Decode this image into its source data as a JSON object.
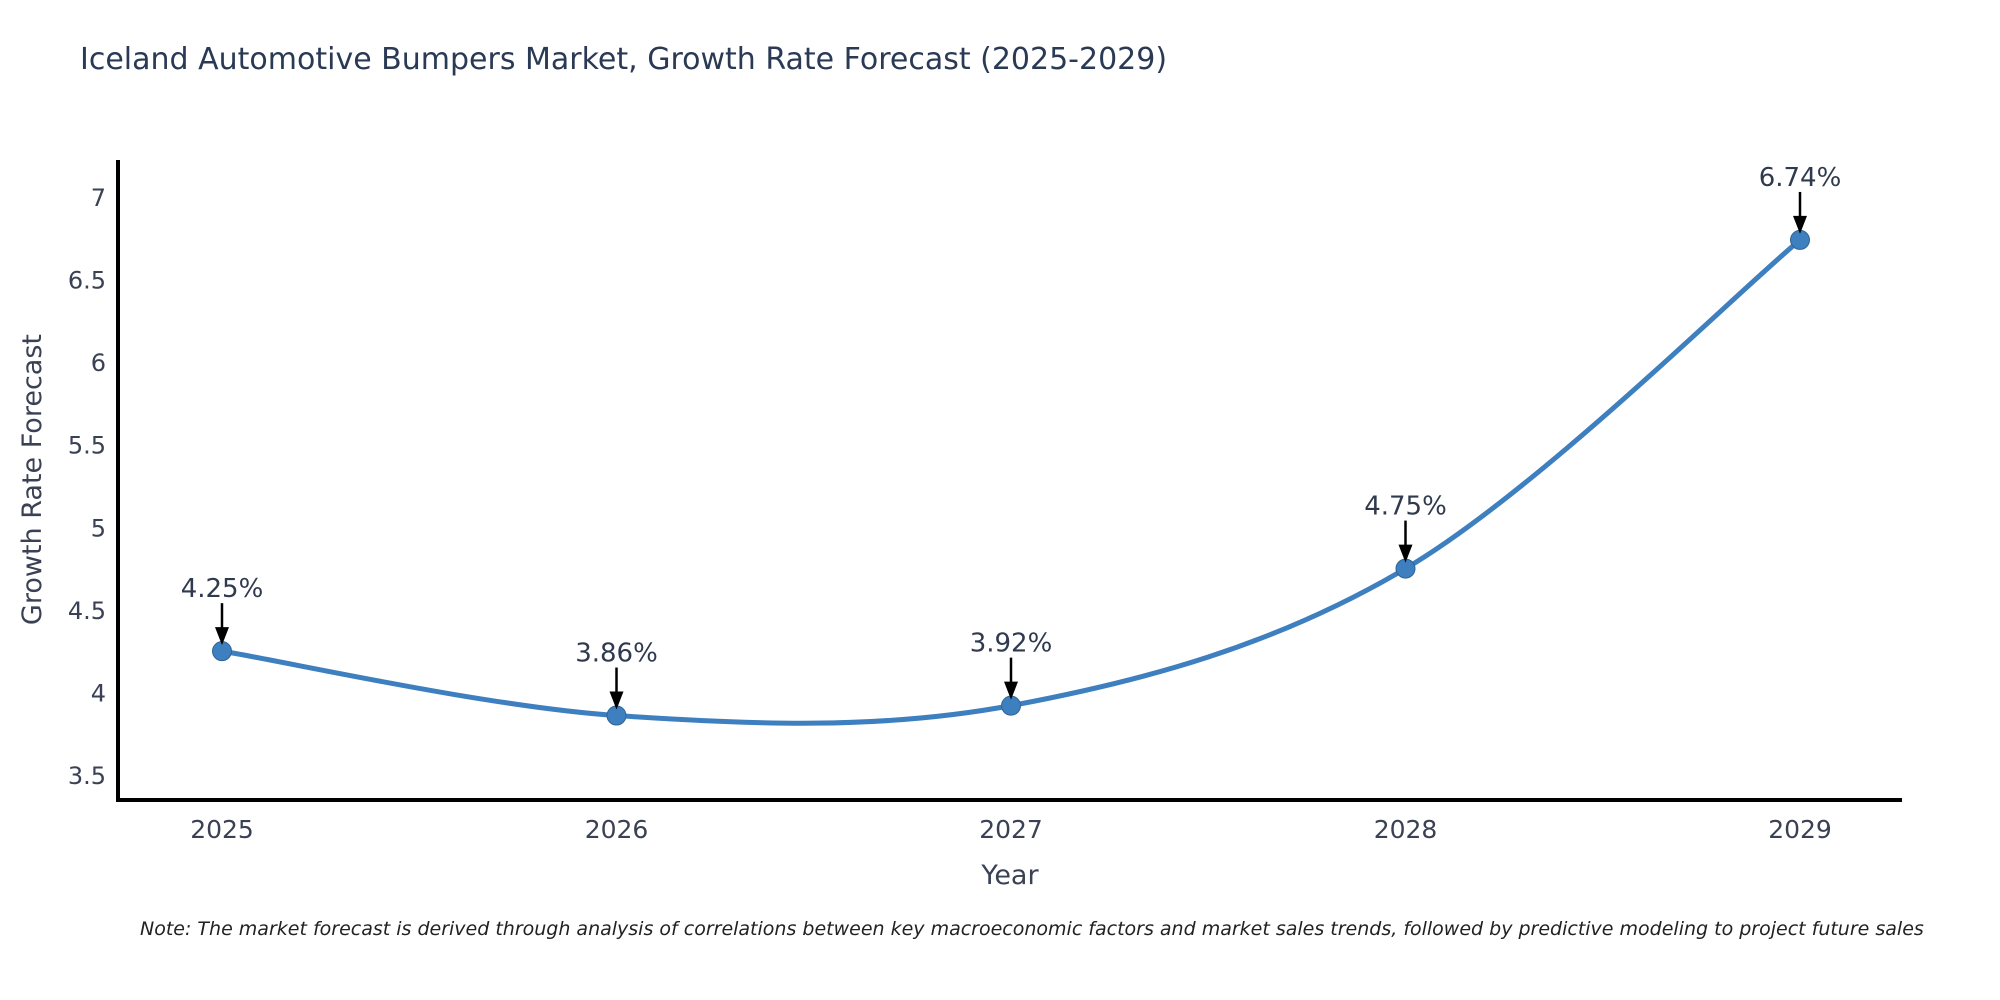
{
  "note": "Note: The market forecast is derived through analysis of correlations between key macroeconomic factors and market sales trends, followed by predictive modeling to project future sales",
  "chart_data": {
    "type": "line",
    "title": "Iceland Automotive Bumpers Market, Growth Rate Forecast (2025-2029)",
    "xlabel": "Year",
    "ylabel": "Growth Rate Forecast",
    "categories": [
      "2025",
      "2026",
      "2027",
      "2028",
      "2029"
    ],
    "series": [
      {
        "name": "Growth Rate Forecast",
        "values": [
          4.25,
          3.86,
          3.92,
          4.75,
          6.74
        ],
        "point_labels": [
          "4.25%",
          "3.86%",
          "3.92%",
          "4.75%",
          "6.74%"
        ]
      }
    ],
    "yticks": [
      3.5,
      4,
      4.5,
      5,
      5.5,
      6,
      6.5,
      7
    ],
    "ytick_labels": [
      "3.5",
      "4",
      "4.5",
      "5",
      "5.5",
      "6",
      "6.5",
      "7"
    ],
    "ylim": [
      3.35,
      7.22
    ],
    "grid": false,
    "legend_position": "none",
    "line_style": "spline",
    "marker": "circle",
    "annotations": "arrow-down-to-point",
    "colors": {
      "line": "#3e7fbf",
      "marker": "#3e7fbf",
      "marker_edge": "#2e6496",
      "annotation_arrow": "#000000",
      "title_text": "#2a3a55",
      "axis_text": "#3a4154",
      "axis_line": "#000000",
      "note_text": "#222222",
      "background": "#ffffff"
    }
  }
}
